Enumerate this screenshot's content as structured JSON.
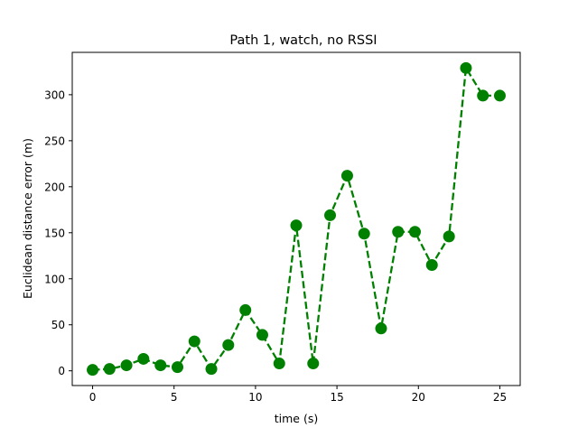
{
  "chart_data": {
    "type": "line",
    "title": "Path 1, watch, no RSSI",
    "xlabel": "time (s)",
    "ylabel": "Euclidean distance error (m)",
    "xlim": [
      -1.25,
      26.25
    ],
    "ylim": [
      -16,
      346
    ],
    "xticks": [
      0,
      5,
      10,
      15,
      20,
      25
    ],
    "yticks": [
      0,
      50,
      100,
      150,
      200,
      250,
      300
    ],
    "grid": false,
    "legend": null,
    "series": [
      {
        "color": "#008000",
        "line_style": "dashed",
        "marker": "circle",
        "x": [
          0.0,
          1.04,
          2.08,
          3.12,
          4.17,
          5.21,
          6.25,
          7.29,
          8.33,
          9.38,
          10.42,
          11.46,
          12.5,
          13.54,
          14.58,
          15.63,
          16.67,
          17.71,
          18.75,
          19.79,
          20.83,
          21.88,
          22.92,
          23.96,
          25.0
        ],
        "y": [
          1,
          2,
          6,
          13,
          6,
          4,
          32,
          2,
          28,
          66,
          39,
          8,
          158,
          8,
          169,
          212,
          149,
          46,
          151,
          151,
          115,
          146,
          329,
          299,
          299
        ]
      }
    ]
  }
}
